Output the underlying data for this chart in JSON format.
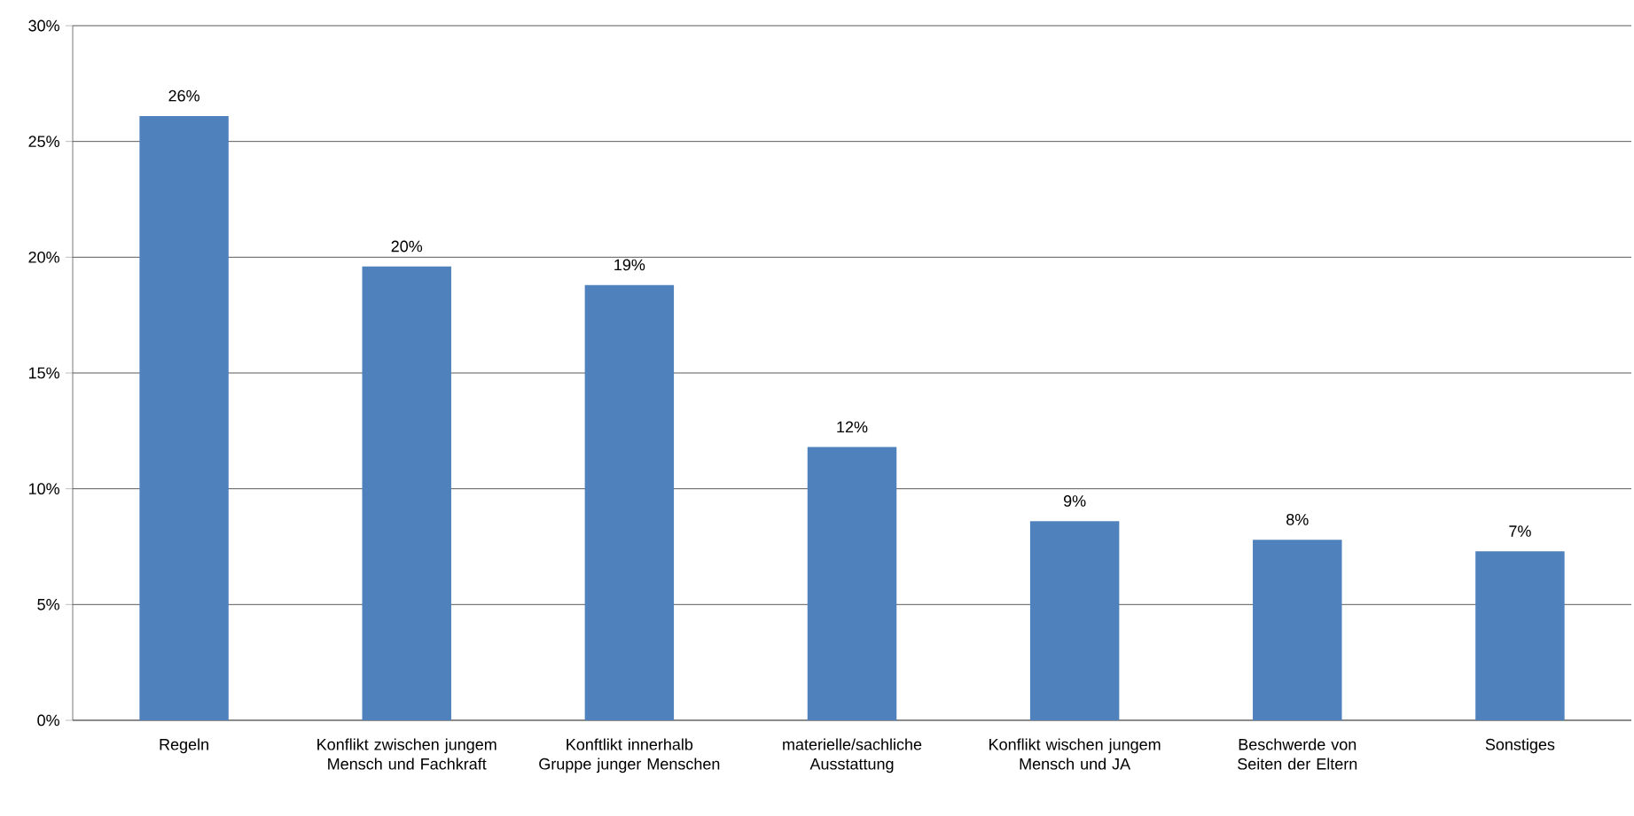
{
  "chart_data": {
    "type": "bar",
    "categories": [
      "Regeln",
      "Konflikt zwischen jungem Mensch und Fachkraft",
      "Konftlikt innerhalb Gruppe junger Menschen",
      "materielle/sachliche Ausstattung",
      "Konflikt wischen jungem Mensch und JA",
      "Beschwerde von Seiten der Eltern",
      "Sonstiges"
    ],
    "values": [
      26.1,
      19.6,
      18.8,
      11.8,
      8.6,
      7.8,
      7.3
    ],
    "value_labels": [
      "26%",
      "20%",
      "19%",
      "12%",
      "9%",
      "8%",
      "7%"
    ],
    "color": "#4f81bd",
    "ylim": [
      0,
      30
    ],
    "yticks": [
      {
        "value": 0,
        "label": "0%"
      },
      {
        "value": 5,
        "label": "5%"
      },
      {
        "value": 10,
        "label": "10%"
      },
      {
        "value": 15,
        "label": "15%"
      },
      {
        "value": 20,
        "label": "20%"
      },
      {
        "value": 25,
        "label": "25%"
      },
      {
        "value": 30,
        "label": "30%"
      }
    ],
    "grid": "y"
  }
}
